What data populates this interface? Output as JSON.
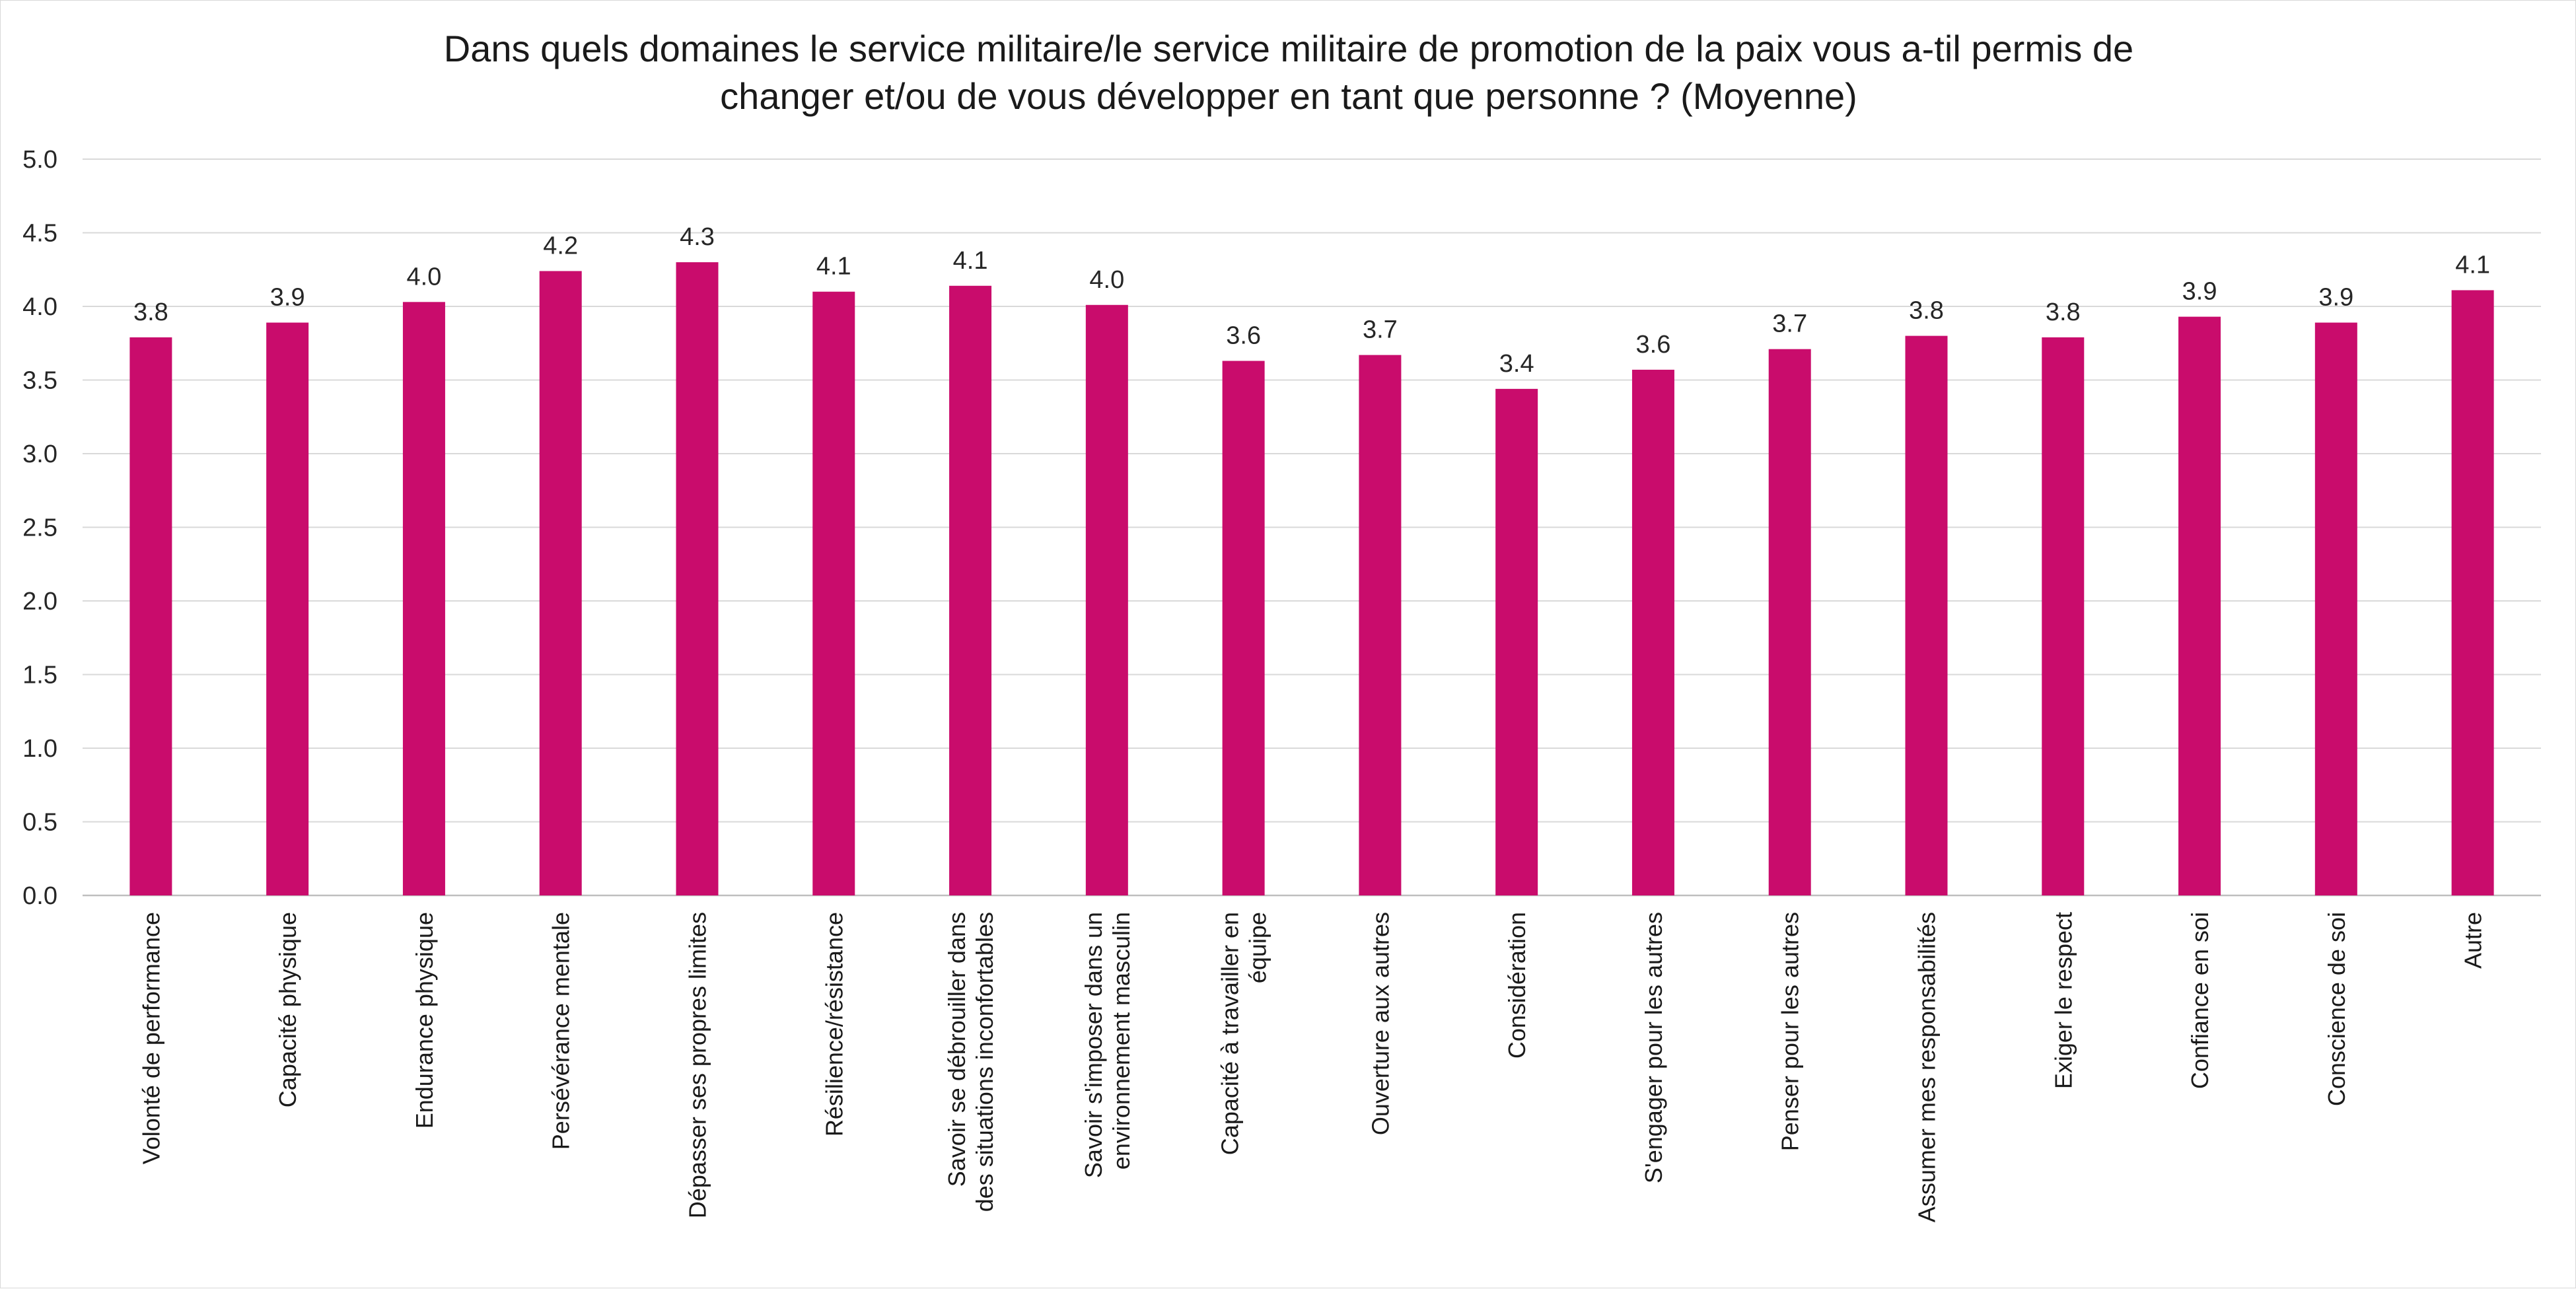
{
  "chart_data": {
    "type": "bar",
    "title": "Dans quels domaines le service militaire/le service militaire de promotion de la paix vous a-til permis de changer et/ou de vous développer en tant que personne ? (Moyenne)",
    "title_lines": [
      "Dans quels domaines le service militaire/le service militaire de promotion de la paix vous a-til permis de",
      "changer et/ou de vous développer en tant que personne ? (Moyenne)"
    ],
    "xlabel": "",
    "ylabel": "",
    "ylim": [
      0,
      5
    ],
    "yticks": [
      "0.0",
      "0.5",
      "1.0",
      "1.5",
      "2.0",
      "2.5",
      "3.0",
      "3.5",
      "4.0",
      "4.5",
      "5.0"
    ],
    "grid": true,
    "bar_color": "#C90C6C",
    "categories": [
      "Volonté de performance",
      "Capacité physique",
      "Endurance physique",
      "Persévérance mentale",
      "Dépasser ses propres limites",
      "Résilience/résistance",
      "Savoir se débrouiller dans des situations inconfortables",
      "Savoir s'imposer dans un environnement masculin",
      "Capacité à travailler en équipe",
      "Ouverture aux autres",
      "Considération",
      "S'engager pour les autres",
      "Penser pour les autres",
      "Assumer mes responsabilités",
      "Exiger le respect",
      "Confiance en soi",
      "Conscience de soi",
      "Autre"
    ],
    "category_lines": [
      [
        "Volonté de performance"
      ],
      [
        "Capacité physique"
      ],
      [
        "Endurance physique"
      ],
      [
        "Persévérance mentale"
      ],
      [
        "Dépasser ses propres limites"
      ],
      [
        "Résilience/résistance"
      ],
      [
        "Savoir se débrouiller dans",
        "des situations inconfortables"
      ],
      [
        "Savoir s'imposer dans un",
        "environnement masculin"
      ],
      [
        "Capacité à travailler en",
        "équipe"
      ],
      [
        "Ouverture aux autres"
      ],
      [
        "Considération"
      ],
      [
        "S'engager pour les autres"
      ],
      [
        "Penser pour les autres"
      ],
      [
        "Assumer mes responsabilités"
      ],
      [
        "Exiger le respect"
      ],
      [
        "Confiance en soi"
      ],
      [
        "Conscience de soi"
      ],
      [
        "Autre"
      ]
    ],
    "values": [
      3.79,
      3.89,
      4.03,
      4.24,
      4.3,
      4.1,
      4.14,
      4.01,
      3.63,
      3.67,
      3.44,
      3.57,
      3.71,
      3.8,
      3.79,
      3.93,
      3.89,
      4.11
    ],
    "value_labels": [
      "3.8",
      "3.9",
      "4.0",
      "4.2",
      "4.3",
      "4.1",
      "4.1",
      "4.0",
      "3.6",
      "3.7",
      "3.4",
      "3.6",
      "3.7",
      "3.8",
      "3.8",
      "3.9",
      "3.9",
      "4.1"
    ]
  }
}
